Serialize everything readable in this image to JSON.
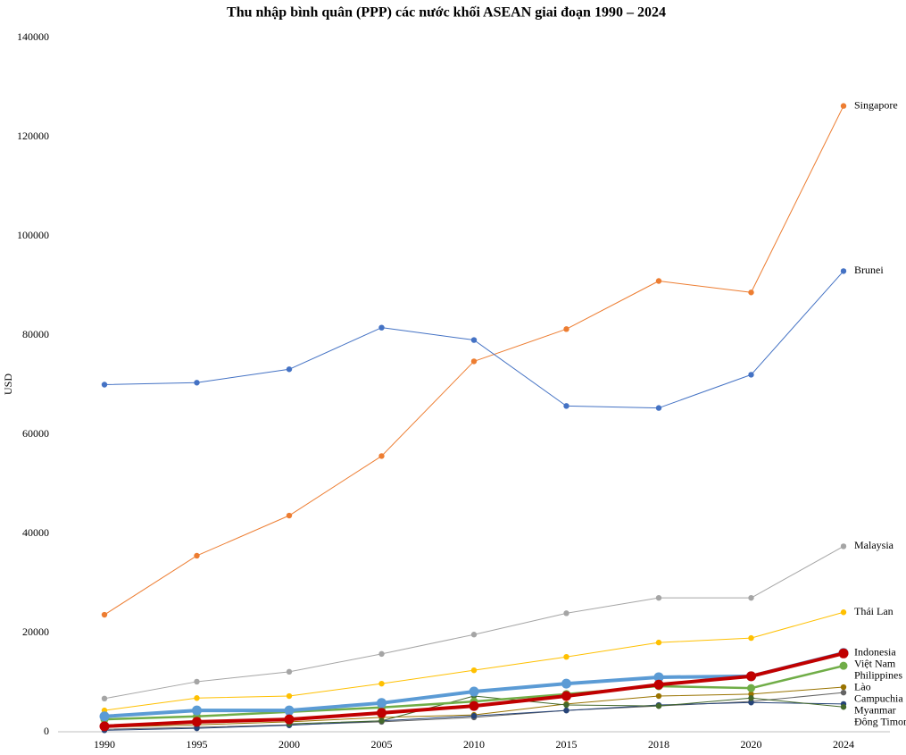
{
  "chart_data": {
    "type": "line",
    "title": "Thu nhập bình quân (PPP) các nước khối ASEAN giai đoạn 1990 – 2024",
    "y_label": "USD",
    "categories": [
      "1990",
      "1995",
      "2000",
      "2005",
      "2010",
      "2015",
      "2018",
      "2020",
      "2024"
    ],
    "ylim": [
      0,
      140000
    ],
    "yticks": [
      0,
      20000,
      40000,
      60000,
      80000,
      100000,
      120000,
      140000
    ],
    "grid": false,
    "series": [
      {
        "name": "Singapore",
        "color": "#ED7D31",
        "line_width": 1,
        "values": [
          23600,
          35500,
          43600,
          55600,
          74700,
          81200,
          90900,
          88600,
          126200
        ]
      },
      {
        "name": "Brunei",
        "color": "#4472C4",
        "line_width": 1,
        "values": [
          70000,
          70400,
          73100,
          81500,
          79000,
          65700,
          65300,
          72000,
          92900
        ]
      },
      {
        "name": "Malaysia",
        "color": "#A5A5A5",
        "line_width": 1,
        "values": [
          6700,
          10100,
          12100,
          15700,
          19600,
          23900,
          27000,
          27000,
          37400
        ]
      },
      {
        "name": "Thái Lan",
        "color": "#FFC000",
        "line_width": 1,
        "values": [
          4300,
          6800,
          7200,
          9700,
          12400,
          15100,
          18000,
          18900,
          24100
        ]
      },
      {
        "name": "Lào",
        "color": "#997300",
        "line_width": 1,
        "values": [
          900,
          1400,
          2000,
          2900,
          3400,
          5600,
          7200,
          7600,
          9000
        ]
      },
      {
        "name": "Campuchia",
        "color": "#636363",
        "line_width": 1,
        "values": [
          500,
          900,
          1400,
          2000,
          2900,
          4300,
          5200,
          6100,
          7900
        ]
      },
      {
        "name": "Myanmar",
        "color": "#264478",
        "line_width": 1,
        "values": [
          300,
          700,
          1300,
          2200,
          3200,
          4300,
          5400,
          5900,
          5600
        ]
      },
      {
        "name": "Đông Timor",
        "color": "#43682B",
        "line_width": 1,
        "values": [
          null,
          null,
          1600,
          2200,
          7200,
          5400,
          5200,
          6800,
          5000
        ]
      },
      {
        "name": "Philippines",
        "color": "#70AD47",
        "line_width": 2.5,
        "values": [
          2500,
          3100,
          4000,
          4900,
          6100,
          7600,
          9200,
          8800,
          13300
        ]
      },
      {
        "name": "Indonesia",
        "color": "#5B9BD5",
        "line_width": 4,
        "values": [
          3100,
          4300,
          4300,
          5800,
          8100,
          9700,
          11000,
          11200,
          15900
        ]
      },
      {
        "name": "Việt Nam",
        "color": "#C00000",
        "line_width": 4,
        "values": [
          1100,
          2000,
          2500,
          3800,
          5200,
          7200,
          9500,
          11200,
          15800
        ]
      }
    ]
  }
}
